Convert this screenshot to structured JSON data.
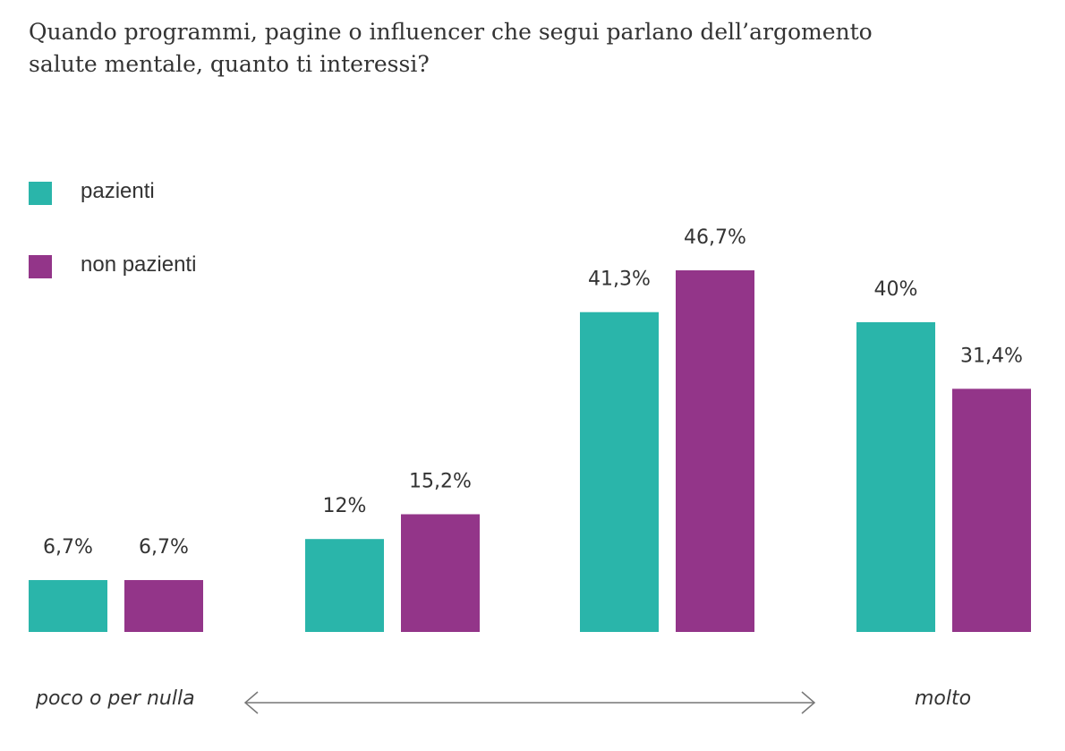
{
  "title": "Quando programmi, pagine o influencer che segui parlano dell’argomento salute mentale, quanto ti interessi?",
  "colors": {
    "pazienti": "#2ab5aa",
    "non_pazienti": "#933589",
    "text": "#333333",
    "arrow": "#777777"
  },
  "legend": [
    {
      "label": "pazienti",
      "color": "#2ab5aa"
    },
    {
      "label": "non pazienti",
      "color": "#933589"
    }
  ],
  "scale": {
    "left_label": "poco o per nulla",
    "right_label": "molto"
  },
  "chart_data": {
    "type": "bar",
    "categories": [
      "",
      "",
      "",
      ""
    ],
    "series": [
      {
        "name": "pazienti",
        "values": [
          6.7,
          12,
          41.3,
          40
        ],
        "labels": [
          "6,7%",
          "12%",
          "41,3%",
          "40%"
        ]
      },
      {
        "name": "non pazienti",
        "values": [
          6.7,
          15.2,
          46.7,
          31.4
        ],
        "labels": [
          "6,7%",
          "15,2%",
          "46,7%",
          "31,4%"
        ]
      }
    ],
    "title": "Quando programmi, pagine o influencer che segui parlano dell’argomento salute mentale, quanto ti interessi?",
    "xlabel": "",
    "ylabel": "",
    "ylim": [
      0,
      46.7
    ],
    "grid": false,
    "legend_position": "top-left"
  }
}
